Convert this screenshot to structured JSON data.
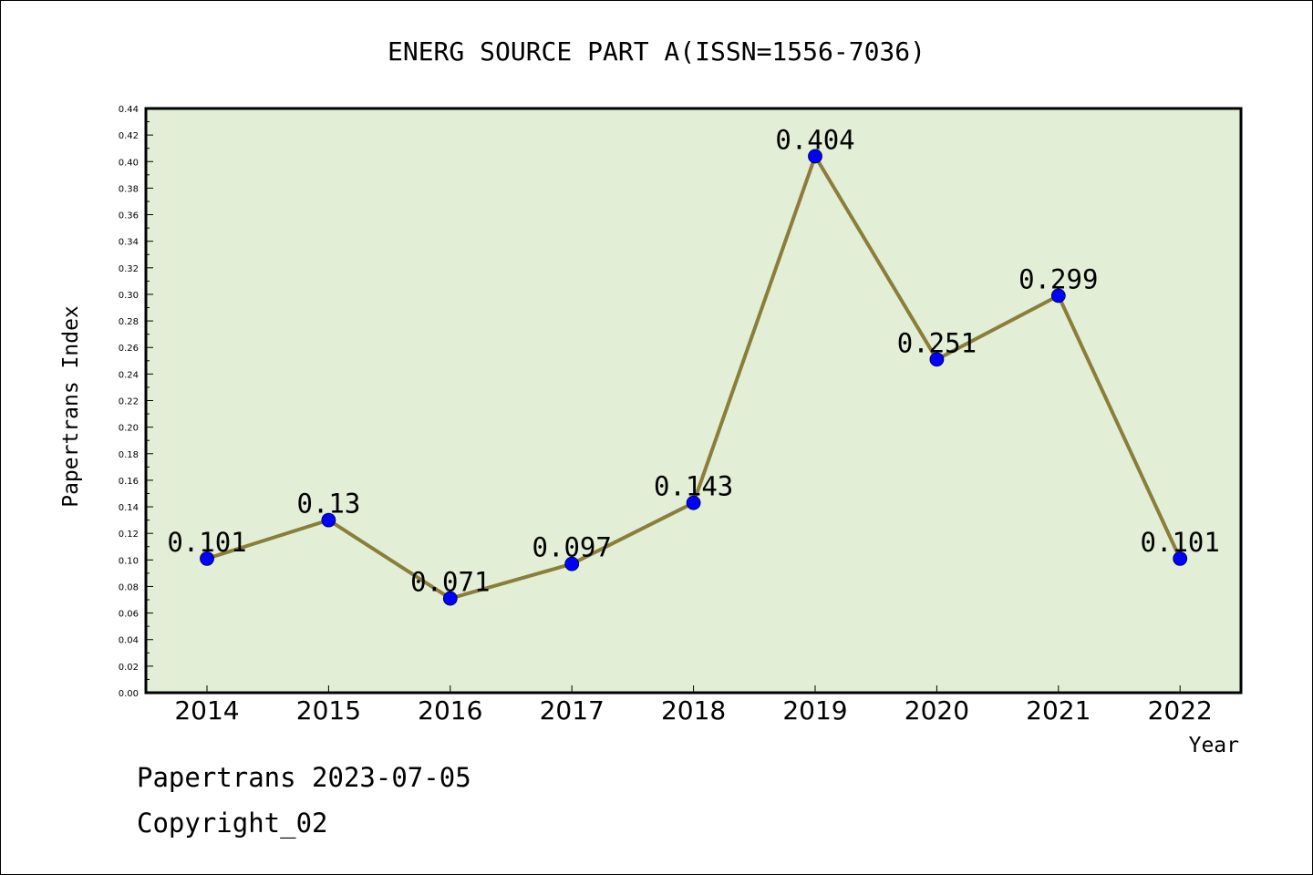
{
  "chart_data": {
    "type": "line",
    "title": "ENERG SOURCE PART A(ISSN=1556-7036)",
    "xlabel": "Year",
    "ylabel": "Papertrans Index",
    "categories": [
      "2014",
      "2015",
      "2016",
      "2017",
      "2018",
      "2019",
      "2020",
      "2021",
      "2022"
    ],
    "series": [
      {
        "values": [
          0.101,
          0.13,
          0.071,
          0.097,
          0.143,
          0.404,
          0.251,
          0.299,
          0.101
        ],
        "labels": [
          "0.101",
          "0.13",
          "0.071",
          "0.097",
          "0.143",
          "0.404",
          "0.251",
          "0.299",
          "0.101"
        ]
      }
    ],
    "ylim": [
      0,
      0.44
    ],
    "yticks": [
      "0.00",
      "0.02",
      "0.04",
      "0.06",
      "0.08",
      "0.10",
      "0.12",
      "0.14",
      "0.16",
      "0.18",
      "0.20",
      "0.22",
      "0.24",
      "0.26",
      "0.28",
      "0.30",
      "0.32",
      "0.34",
      "0.36",
      "0.38",
      "0.40",
      "0.42",
      "0.44"
    ],
    "grid": false,
    "colors": {
      "plot_background": "#e2efd6",
      "line": "#8b7d3a",
      "marker": "#0000ff"
    }
  },
  "footer": {
    "stamp": "Papertrans 2023-07-05",
    "copyright": "Copyright_02"
  }
}
